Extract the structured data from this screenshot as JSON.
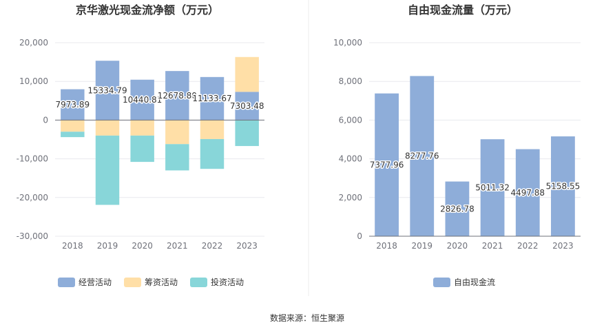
{
  "source_note": "数据来源：恒生聚源",
  "colors": {
    "operating": "#8eadd9",
    "financing": "#ffdfa7",
    "investing": "#88d6d9",
    "fcf": "#8eadd9",
    "grid": "#e8e9ee",
    "axis": "#6e7079",
    "divider": "#eeeeee"
  },
  "chart_data": [
    {
      "type": "bar",
      "stacked": true,
      "title": "京华激光现金流净额（万元）",
      "categories": [
        "2018",
        "2019",
        "2020",
        "2021",
        "2022",
        "2023"
      ],
      "ylim": [
        -30000,
        20000
      ],
      "yticks": [
        -30000,
        -20000,
        -10000,
        0,
        10000,
        20000
      ],
      "ytick_labels": [
        "-30,000",
        "-20,000",
        "-10,000",
        "0",
        "10,000",
        "20,000"
      ],
      "grid": true,
      "legend_position": "bottom",
      "series": [
        {
          "name": "经营活动",
          "color_key": "operating",
          "values": [
            7973.89,
            15334.79,
            10440.81,
            12678.8,
            11133.67,
            7303.48
          ],
          "labels": [
            "7973.89",
            "15334.79",
            "10440.81",
            "12678.80",
            "11133.67",
            "7303.48"
          ]
        },
        {
          "name": "筹资活动",
          "color_key": "financing",
          "values": [
            -3000,
            -4000,
            -4000,
            -6200,
            -4900,
            9000
          ]
        },
        {
          "name": "投资活动",
          "color_key": "investing",
          "values": [
            -1400,
            -17900,
            -6800,
            -6800,
            -7700,
            -6700
          ]
        }
      ]
    },
    {
      "type": "bar",
      "title": "自由现金流量（万元）",
      "categories": [
        "2018",
        "2019",
        "2020",
        "2021",
        "2022",
        "2023"
      ],
      "ylim": [
        0,
        10000
      ],
      "yticks": [
        0,
        2000,
        4000,
        6000,
        8000,
        10000
      ],
      "ytick_labels": [
        "0",
        "2,000",
        "4,000",
        "6,000",
        "8,000",
        "10,000"
      ],
      "grid": true,
      "legend_position": "bottom",
      "series": [
        {
          "name": "自由现金流",
          "color_key": "fcf",
          "values": [
            7377.96,
            8277.76,
            2826.78,
            5011.32,
            4497.88,
            5158.55
          ],
          "labels": [
            "7377.96",
            "8277.76",
            "2826.78",
            "5011.32",
            "4497.88",
            "5158.55"
          ]
        }
      ]
    }
  ]
}
